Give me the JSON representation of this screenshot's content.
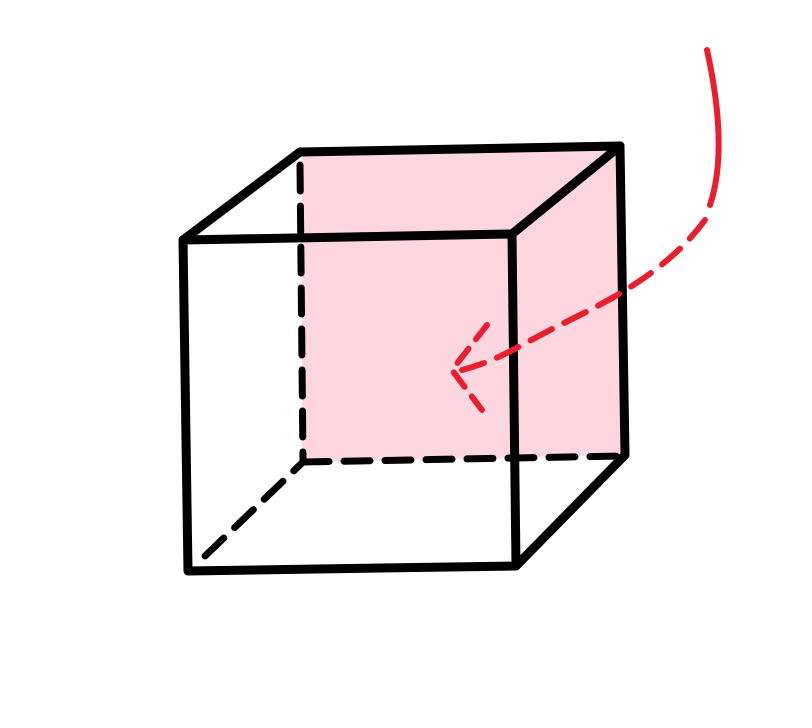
{
  "colors": {
    "background": "#ffffff",
    "outline": "#000000",
    "back_face_fill": "#fdd6df",
    "arrow": "#e8202e"
  }
}
